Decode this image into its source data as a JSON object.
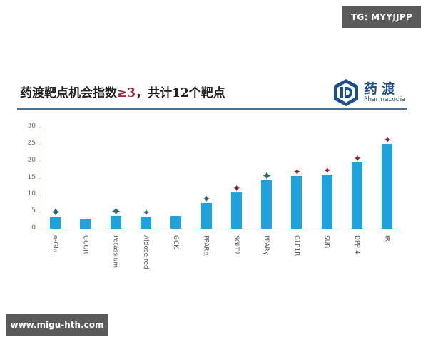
{
  "watermarks": {
    "tg": "TG: MYYJJPP",
    "url": "www.migu-hth.com"
  },
  "slide": {
    "title_prefix": "药渡靶点机会指数",
    "title_accent": "≥3",
    "title_suffix": "，共计12个靶点"
  },
  "logo": {
    "cn": "药渡",
    "en": "Pharmacodia",
    "icon": "pharmacodia-d-logo-icon"
  },
  "colors": {
    "bar": "#1fa3dc",
    "marker_teal": "#2e6b78",
    "marker_red": "#8b1e3f",
    "title_rule": "#4c6f90",
    "accent": "#9b2a3c"
  },
  "chart_data": {
    "type": "bar",
    "title": "药渡靶点机会指数≥3，共计12个靶点",
    "xlabel": "",
    "ylabel": "",
    "ylim": [
      0,
      30
    ],
    "yticks": [
      0,
      5,
      10,
      15,
      20,
      25,
      30
    ],
    "grid": false,
    "legend": "none",
    "categories": [
      "α-Glu",
      "GCGR",
      "Potassium",
      "Aldose red",
      "GCK",
      "PPARα",
      "SGLT2",
      "PPARγ",
      "GLP1R",
      "SUR",
      "DPP-4",
      "IR"
    ],
    "values": [
      3.5,
      3,
      3.7,
      3.6,
      3.8,
      7.5,
      10.7,
      14.3,
      15.5,
      16,
      19.5,
      25
    ],
    "markers": [
      {
        "category": "α-Glu",
        "type": "teal-star-cluster"
      },
      {
        "category": "GCGR",
        "type": "none"
      },
      {
        "category": "Potassium",
        "type": "teal-star-cluster"
      },
      {
        "category": "Aldose red",
        "type": "teal-star"
      },
      {
        "category": "GCK",
        "type": "none"
      },
      {
        "category": "PPARα",
        "type": "teal-star"
      },
      {
        "category": "SGLT2",
        "type": "red-star"
      },
      {
        "category": "PPARγ",
        "type": "teal-star-cluster"
      },
      {
        "category": "GLP1R",
        "type": "red-star"
      },
      {
        "category": "SUR",
        "type": "red-star"
      },
      {
        "category": "DPP-4",
        "type": "red-star"
      },
      {
        "category": "IR",
        "type": "red-star"
      }
    ]
  }
}
